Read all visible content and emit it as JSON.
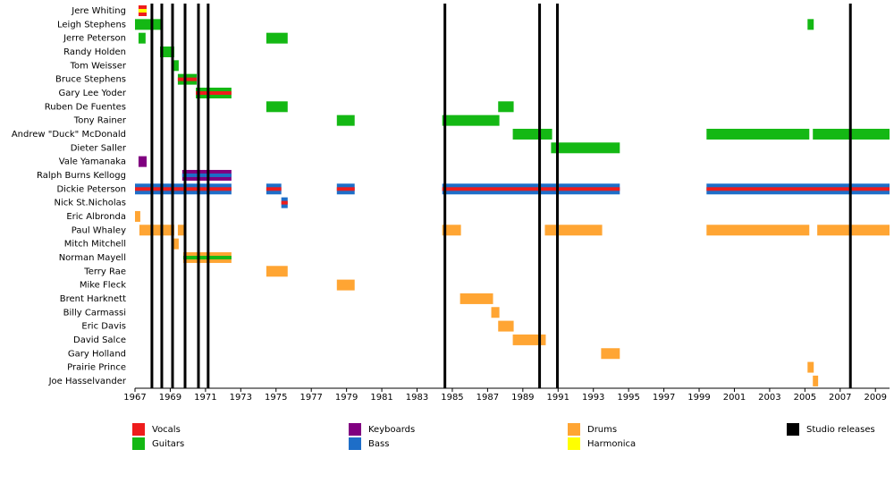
{
  "chart_data": {
    "type": "timeline",
    "xlim": [
      1967,
      2009.8
    ],
    "xticks": [
      1967,
      1969,
      1971,
      1973,
      1975,
      1977,
      1979,
      1981,
      1983,
      1985,
      1987,
      1989,
      1991,
      1993,
      1995,
      1997,
      1999,
      2001,
      2003,
      2005,
      2007,
      2009
    ],
    "roles": [
      {
        "name": "Vocals",
        "color": "#ee1c1c"
      },
      {
        "name": "Guitars",
        "color": "#14b814"
      },
      {
        "name": "Keyboards",
        "color": "#800080"
      },
      {
        "name": "Bass",
        "color": "#1e6ec8"
      },
      {
        "name": "Drums",
        "color": "#ffa533"
      },
      {
        "name": "Harmonica",
        "color": "#ffff00"
      }
    ],
    "studio_releases": {
      "name": "Studio releases",
      "color": "#000000",
      "x": [
        1967.96,
        1968.52,
        1969.13,
        1969.84,
        1970.6,
        1971.15,
        1984.58,
        1989.95,
        1990.96,
        2007.58
      ]
    },
    "members": [
      {
        "name": "Jere Whiting",
        "periods": [
          {
            "start": 1967.2,
            "end": 1967.66,
            "roles": [
              "Vocals",
              "Harmonica"
            ]
          }
        ]
      },
      {
        "name": "Leigh Stephens",
        "periods": [
          {
            "start": 1967.0,
            "end": 1968.47,
            "roles": [
              "Guitars"
            ]
          },
          {
            "start": 2005.15,
            "end": 2005.5,
            "roles": [
              "Guitars"
            ]
          }
        ]
      },
      {
        "name": "Jerre Peterson",
        "periods": [
          {
            "start": 1967.2,
            "end": 1967.6,
            "roles": [
              "Guitars"
            ]
          },
          {
            "start": 1974.45,
            "end": 1975.66,
            "roles": [
              "Guitars"
            ]
          }
        ]
      },
      {
        "name": "Randy Holden",
        "periods": [
          {
            "start": 1968.42,
            "end": 1969.23,
            "roles": [
              "Guitars"
            ]
          }
        ]
      },
      {
        "name": "Tom Weisser",
        "periods": [
          {
            "start": 1969.13,
            "end": 1969.48,
            "roles": [
              "Guitars"
            ]
          }
        ]
      },
      {
        "name": "Bruce Stephens",
        "periods": [
          {
            "start": 1969.43,
            "end": 1970.5,
            "roles": [
              "Guitars",
              "Vocals"
            ]
          }
        ]
      },
      {
        "name": "Gary Lee Yoder",
        "periods": [
          {
            "start": 1970.45,
            "end": 1972.47,
            "roles": [
              "Guitars",
              "Vocals"
            ]
          }
        ]
      },
      {
        "name": "Ruben De Fuentes",
        "periods": [
          {
            "start": 1974.45,
            "end": 1975.66,
            "roles": [
              "Guitars"
            ]
          },
          {
            "start": 1987.6,
            "end": 1988.48,
            "roles": [
              "Guitars"
            ]
          }
        ]
      },
      {
        "name": "Tony Rainer",
        "periods": [
          {
            "start": 1978.45,
            "end": 1979.46,
            "roles": [
              "Guitars"
            ]
          },
          {
            "start": 1984.43,
            "end": 1987.67,
            "roles": [
              "Guitars"
            ]
          }
        ]
      },
      {
        "name": "Andrew \"Duck\" McDonald",
        "periods": [
          {
            "start": 1988.43,
            "end": 1990.66,
            "roles": [
              "Guitars"
            ]
          },
          {
            "start": 1999.42,
            "end": 2005.25,
            "roles": [
              "Guitars"
            ]
          },
          {
            "start": 2005.45,
            "end": 2009.8,
            "roles": [
              "Guitars"
            ]
          }
        ]
      },
      {
        "name": "Dieter Saller",
        "periods": [
          {
            "start": 1990.6,
            "end": 1994.5,
            "roles": [
              "Guitars"
            ]
          }
        ]
      },
      {
        "name": "Vale Yamanaka",
        "periods": [
          {
            "start": 1967.2,
            "end": 1967.66,
            "roles": [
              "Keyboards"
            ]
          }
        ]
      },
      {
        "name": "Ralph Burns Kellogg",
        "periods": [
          {
            "start": 1969.68,
            "end": 1972.47,
            "roles": [
              "Keyboards",
              "Bass"
            ]
          }
        ]
      },
      {
        "name": "Dickie Peterson",
        "periods": [
          {
            "start": 1967.0,
            "end": 1972.47,
            "roles": [
              "Bass",
              "Vocals"
            ]
          },
          {
            "start": 1974.45,
            "end": 1975.3,
            "roles": [
              "Bass",
              "Vocals"
            ]
          },
          {
            "start": 1978.45,
            "end": 1979.46,
            "roles": [
              "Bass",
              "Vocals"
            ]
          },
          {
            "start": 1984.43,
            "end": 1994.5,
            "roles": [
              "Bass",
              "Vocals"
            ]
          },
          {
            "start": 1999.42,
            "end": 2009.8,
            "roles": [
              "Bass",
              "Vocals"
            ]
          }
        ]
      },
      {
        "name": "Nick St.Nicholas",
        "periods": [
          {
            "start": 1975.3,
            "end": 1975.66,
            "roles": [
              "Bass",
              "Vocals"
            ]
          }
        ]
      },
      {
        "name": "Eric Albronda",
        "periods": [
          {
            "start": 1967.0,
            "end": 1967.3,
            "roles": [
              "Drums"
            ]
          }
        ]
      },
      {
        "name": "Paul Whaley",
        "periods": [
          {
            "start": 1967.25,
            "end": 1969.23,
            "roles": [
              "Drums"
            ]
          },
          {
            "start": 1969.43,
            "end": 1969.79,
            "roles": [
              "Drums"
            ]
          },
          {
            "start": 1984.43,
            "end": 1985.49,
            "roles": [
              "Drums"
            ]
          },
          {
            "start": 1990.25,
            "end": 1993.5,
            "roles": [
              "Drums"
            ]
          },
          {
            "start": 1999.42,
            "end": 2005.25,
            "roles": [
              "Drums"
            ]
          },
          {
            "start": 2005.7,
            "end": 2009.8,
            "roles": [
              "Drums"
            ]
          }
        ]
      },
      {
        "name": "Mitch Mitchell",
        "periods": [
          {
            "start": 1969.13,
            "end": 1969.48,
            "roles": [
              "Drums"
            ]
          }
        ]
      },
      {
        "name": "Norman Mayell",
        "periods": [
          {
            "start": 1969.74,
            "end": 1972.47,
            "roles": [
              "Drums",
              "Guitars"
            ]
          }
        ]
      },
      {
        "name": "Terry Rae",
        "periods": [
          {
            "start": 1974.45,
            "end": 1975.66,
            "roles": [
              "Drums"
            ]
          }
        ]
      },
      {
        "name": "Mike Fleck",
        "periods": [
          {
            "start": 1978.45,
            "end": 1979.46,
            "roles": [
              "Drums"
            ]
          }
        ]
      },
      {
        "name": "Brent Harknett",
        "periods": [
          {
            "start": 1985.44,
            "end": 1987.31,
            "roles": [
              "Drums"
            ]
          }
        ]
      },
      {
        "name": "Billy Carmassi",
        "periods": [
          {
            "start": 1987.21,
            "end": 1987.67,
            "roles": [
              "Drums"
            ]
          }
        ]
      },
      {
        "name": "Eric Davis",
        "periods": [
          {
            "start": 1987.6,
            "end": 1988.48,
            "roles": [
              "Drums"
            ]
          }
        ]
      },
      {
        "name": "David Salce",
        "periods": [
          {
            "start": 1988.43,
            "end": 1990.3,
            "roles": [
              "Drums"
            ]
          }
        ]
      },
      {
        "name": "Gary Holland",
        "periods": [
          {
            "start": 1993.44,
            "end": 1994.5,
            "roles": [
              "Drums"
            ]
          }
        ]
      },
      {
        "name": "Prairie Prince",
        "periods": [
          {
            "start": 2005.15,
            "end": 2005.5,
            "roles": [
              "Drums"
            ]
          }
        ]
      },
      {
        "name": "Joe Hasselvander",
        "periods": [
          {
            "start": 2005.45,
            "end": 2005.75,
            "roles": [
              "Drums"
            ]
          }
        ]
      }
    ]
  }
}
